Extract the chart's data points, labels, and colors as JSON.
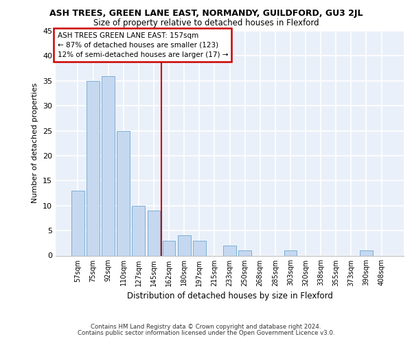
{
  "title": "ASH TREES, GREEN LANE EAST, NORMANDY, GUILDFORD, GU3 2JL",
  "subtitle": "Size of property relative to detached houses in Flexford",
  "xlabel": "Distribution of detached houses by size in Flexford",
  "ylabel": "Number of detached properties",
  "categories": [
    "57sqm",
    "75sqm",
    "92sqm",
    "110sqm",
    "127sqm",
    "145sqm",
    "162sqm",
    "180sqm",
    "197sqm",
    "215sqm",
    "233sqm",
    "250sqm",
    "268sqm",
    "285sqm",
    "303sqm",
    "320sqm",
    "338sqm",
    "355sqm",
    "373sqm",
    "390sqm",
    "408sqm"
  ],
  "values": [
    13,
    35,
    36,
    25,
    10,
    9,
    3,
    4,
    3,
    0,
    2,
    1,
    0,
    0,
    1,
    0,
    0,
    0,
    0,
    1,
    0
  ],
  "bar_color": "#c5d8f0",
  "bar_edge_color": "#7bafd4",
  "vline_x": 6,
  "vline_color": "#cc0000",
  "annotation_title": "ASH TREES GREEN LANE EAST: 157sqm",
  "annotation_line2": "← 87% of detached houses are smaller (123)",
  "annotation_line3": "12% of semi-detached houses are larger (17) →",
  "annotation_box_color": "#cc0000",
  "ylim": [
    0,
    45
  ],
  "yticks": [
    0,
    5,
    10,
    15,
    20,
    25,
    30,
    35,
    40,
    45
  ],
  "background_color": "#eaf0f9",
  "grid_color": "#ffffff",
  "footer1": "Contains HM Land Registry data © Crown copyright and database right 2024.",
  "footer2": "Contains public sector information licensed under the Open Government Licence v3.0."
}
